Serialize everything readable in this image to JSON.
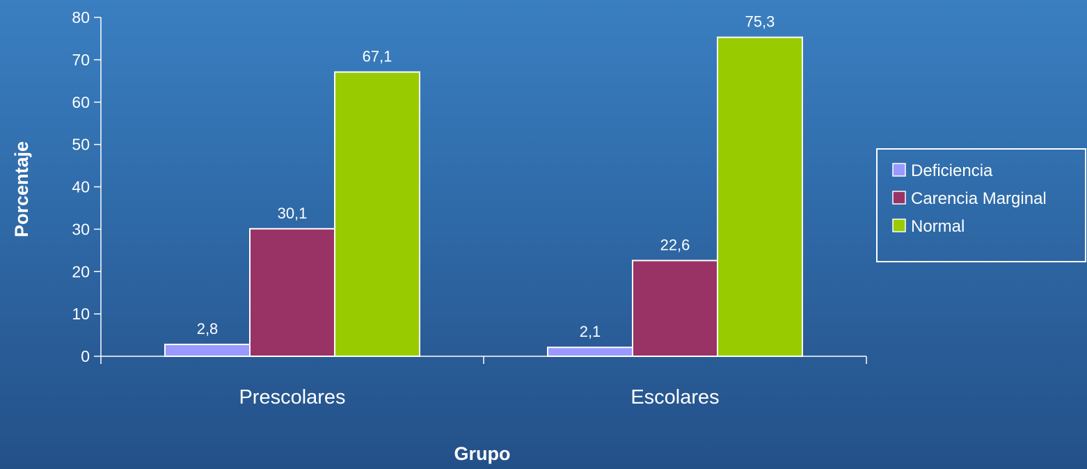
{
  "chart_data": {
    "type": "bar",
    "categories": [
      "Prescolares",
      "Escolares"
    ],
    "series": [
      {
        "name": "Deficiencia",
        "values": [
          2.8,
          2.1
        ],
        "labels": [
          "2,8",
          "2,1"
        ],
        "color": "#9999ff"
      },
      {
        "name": "Carencia Marginal",
        "values": [
          30.1,
          22.6
        ],
        "labels": [
          "30,1",
          "22,6"
        ],
        "color": "#993366"
      },
      {
        "name": "Normal",
        "values": [
          67.1,
          75.3
        ],
        "labels": [
          "67,1",
          "75,3"
        ],
        "color": "#99cc00"
      }
    ],
    "xlabel": "Grupo",
    "ylabel": "Porcentaje",
    "ylim": [
      0,
      80
    ],
    "yticks": [
      0,
      10,
      20,
      30,
      40,
      50,
      60,
      70,
      80
    ],
    "ytick_labels": [
      "0",
      "10",
      "20",
      "30",
      "40",
      "50",
      "60",
      "70",
      "80"
    ],
    "grid": false,
    "legend_position": "right",
    "axis_color": "#ffffff",
    "bar_border_color": "#ffffff"
  }
}
